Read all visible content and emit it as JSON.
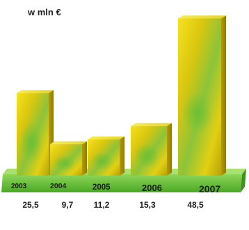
{
  "chart_data": {
    "type": "bar",
    "unit_label": "w mln €",
    "categories": [
      "2003",
      "2004",
      "2005",
      "2006",
      "2007"
    ],
    "values": [
      25.5,
      9.7,
      11.2,
      15.3,
      48.5
    ],
    "value_labels": [
      "25,5",
      "9,7",
      "11,2",
      "15,3",
      "48,5"
    ],
    "title": "",
    "xlabel": "",
    "ylabel": "",
    "ylim": [
      0,
      50
    ],
    "grid": false,
    "colors": {
      "bar_yellow": "#f2d81a",
      "bar_green": "#74c23a",
      "base_green": "#5fbf2e"
    }
  }
}
